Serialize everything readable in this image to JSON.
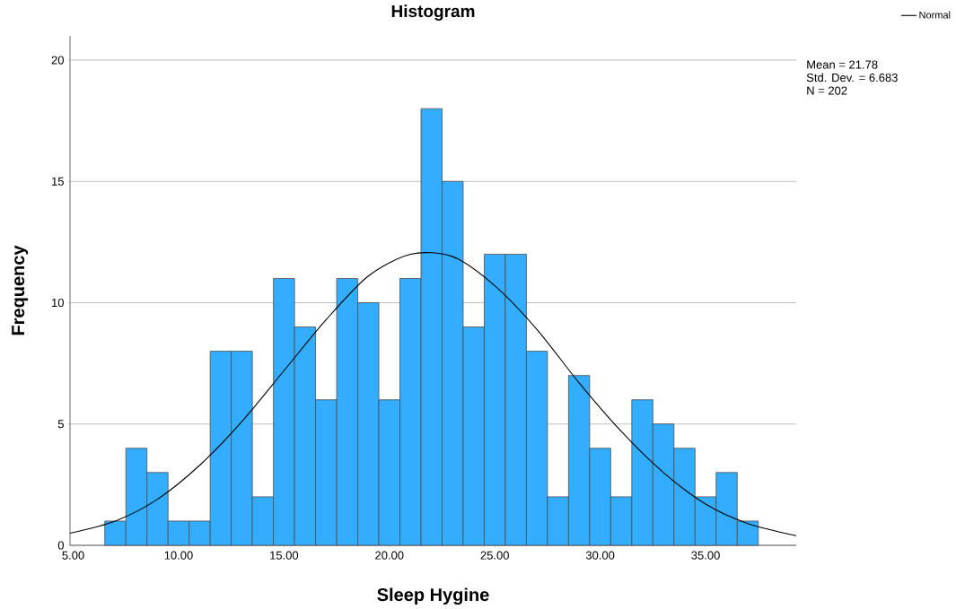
{
  "chart_data": {
    "type": "histogram",
    "title": "Histogram",
    "xlabel": "Sleep Hygine",
    "ylabel": "Frequency",
    "bins": [
      6.5,
      7.5,
      8.5,
      9.5,
      10.5,
      11.5,
      12.5,
      13.5,
      14.5,
      15.5,
      16.5,
      17.5,
      18.5,
      19.5,
      20.5,
      21.5,
      22.5,
      23.5,
      24.5,
      25.5,
      26.5,
      27.5,
      28.5,
      29.5,
      30.5,
      31.5,
      32.5,
      33.5,
      34.5,
      35.5,
      36.5,
      37.5
    ],
    "values": [
      1,
      4,
      3,
      1,
      1,
      8,
      8,
      2,
      11,
      9,
      6,
      11,
      10,
      6,
      11,
      18,
      15,
      9,
      12,
      12,
      8,
      2,
      7,
      4,
      2,
      6,
      5,
      4,
      2,
      3,
      1
    ],
    "color": "#33adff",
    "series": [
      {
        "name": "Normal",
        "type": "line",
        "color": "#000000",
        "x": [
          4.85,
          7,
          9,
          11,
          13,
          15,
          17,
          19,
          21,
          23,
          25,
          27,
          29,
          31,
          33,
          35,
          37,
          39.3
        ],
        "values": [
          0.5,
          1.0,
          1.9,
          3.3,
          5.1,
          7.2,
          9.3,
          11.1,
          12.0,
          11.9,
          10.7,
          8.9,
          6.7,
          4.7,
          3.0,
          1.7,
          0.9,
          0.4
        ]
      }
    ],
    "xlim": [
      4.85,
      39.3
    ],
    "ylim": [
      0,
      21
    ],
    "xticks": [
      {
        "value": 5,
        "label": "5.00"
      },
      {
        "value": 10,
        "label": "10.00"
      },
      {
        "value": 15,
        "label": "15.00"
      },
      {
        "value": 20,
        "label": "20.00"
      },
      {
        "value": 25,
        "label": "25.00"
      },
      {
        "value": 30,
        "label": "30.00"
      },
      {
        "value": 35,
        "label": "35.00"
      }
    ],
    "yticks": [
      0,
      5,
      10,
      15,
      20
    ],
    "grid": "y",
    "legend": "top right",
    "marker": "none",
    "line_style": "solid",
    "annotations": [
      "Mean = 21.78",
      "Std. Dev. = 6.683",
      "N = 202"
    ]
  }
}
